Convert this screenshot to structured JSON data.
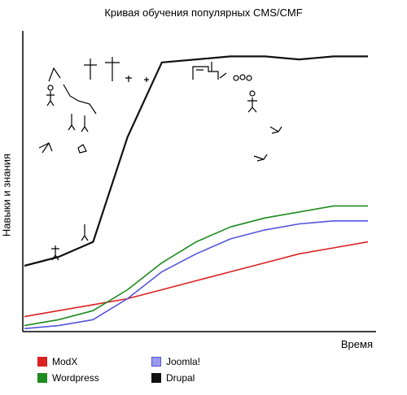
{
  "chart_data": {
    "type": "line",
    "title": "Кривая обучения популярных CMS/CMF",
    "xlabel": "Время",
    "ylabel": "Навыки и знания",
    "x": [
      0,
      10,
      20,
      30,
      40,
      50,
      60,
      70,
      80,
      90,
      100
    ],
    "ylim": [
      0,
      100
    ],
    "grid": false,
    "legend_position": "bottom",
    "series": [
      {
        "name": "ModX",
        "color": "#dd2222",
        "values": [
          5,
          7,
          9,
          11,
          14,
          17,
          20,
          23,
          26,
          28,
          30
        ]
      },
      {
        "name": "Wordpress",
        "color": "#1f8a1f",
        "values": [
          2,
          4,
          7,
          14,
          23,
          30,
          35,
          38,
          40,
          42,
          42
        ]
      },
      {
        "name": "Joomla!",
        "color": "#5555dd",
        "values": [
          1,
          2,
          4,
          11,
          20,
          26,
          31,
          34,
          36,
          37,
          37
        ]
      },
      {
        "name": "Drupal",
        "color": "#111111",
        "values": [
          22,
          25,
          30,
          65,
          90,
          91,
          92,
          92,
          91,
          92,
          92
        ]
      }
    ]
  }
}
